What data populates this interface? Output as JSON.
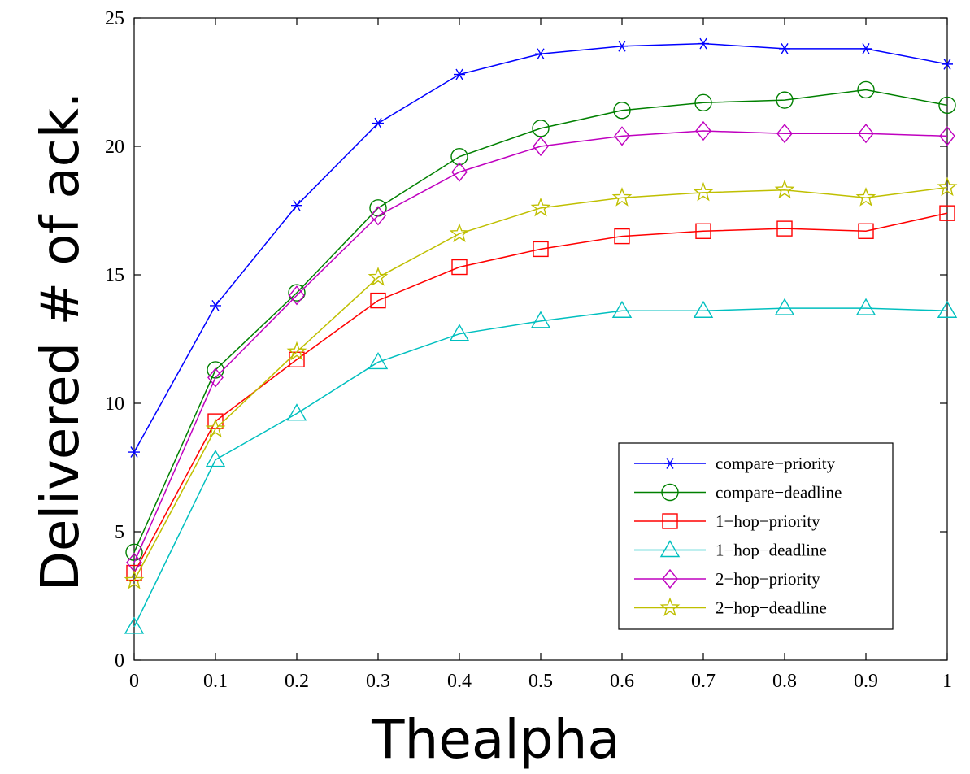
{
  "chart_data": {
    "type": "line",
    "title": "",
    "xlabel": "Thealpha",
    "ylabel": "Delivered # of ack.",
    "x": [
      0,
      0.1,
      0.2,
      0.3,
      0.4,
      0.5,
      0.6,
      0.7,
      0.8,
      0.9,
      1
    ],
    "xlim": [
      0,
      1
    ],
    "ylim": [
      0,
      25
    ],
    "x_ticks": [
      0,
      0.1,
      0.2,
      0.3,
      0.4,
      0.5,
      0.6,
      0.7,
      0.8,
      0.9,
      1
    ],
    "x_tick_labels": [
      "0",
      "0.1",
      "0.2",
      "0.3",
      "0.4",
      "0.5",
      "0.6",
      "0.7",
      "0.8",
      "0.9",
      "1"
    ],
    "y_ticks": [
      0,
      5,
      10,
      15,
      20,
      25
    ],
    "y_tick_labels": [
      "0",
      "5",
      "10",
      "15",
      "20",
      "25"
    ],
    "grid": false,
    "legend_position": "bottom-right",
    "series": [
      {
        "name": "compare−priority",
        "color": "#0000ff",
        "marker": "asterisk",
        "values": [
          8.1,
          13.8,
          17.7,
          20.9,
          22.8,
          23.6,
          23.9,
          24.0,
          23.8,
          23.8,
          23.2
        ]
      },
      {
        "name": "compare−deadline",
        "color": "#008000",
        "marker": "circle",
        "values": [
          4.2,
          11.3,
          14.3,
          17.6,
          19.6,
          20.7,
          21.4,
          21.7,
          21.8,
          22.2,
          21.6
        ]
      },
      {
        "name": "1−hop−priority",
        "color": "#ff0000",
        "marker": "square",
        "values": [
          3.4,
          9.3,
          11.7,
          14.0,
          15.3,
          16.0,
          16.5,
          16.7,
          16.8,
          16.7,
          17.4
        ]
      },
      {
        "name": "1−hop−deadline",
        "color": "#00bfbf",
        "marker": "triangle",
        "values": [
          1.3,
          7.8,
          9.6,
          11.6,
          12.7,
          13.2,
          13.6,
          13.6,
          13.7,
          13.7,
          13.6
        ]
      },
      {
        "name": "2−hop−priority",
        "color": "#bf00bf",
        "marker": "diamond",
        "values": [
          3.8,
          11.0,
          14.2,
          17.3,
          19.0,
          20.0,
          20.4,
          20.6,
          20.5,
          20.5,
          20.4
        ]
      },
      {
        "name": "2−hop−deadline",
        "color": "#bfbf00",
        "marker": "star",
        "values": [
          3.1,
          9.0,
          12.0,
          14.9,
          16.6,
          17.6,
          18.0,
          18.2,
          18.3,
          18.0,
          18.4
        ]
      }
    ]
  }
}
